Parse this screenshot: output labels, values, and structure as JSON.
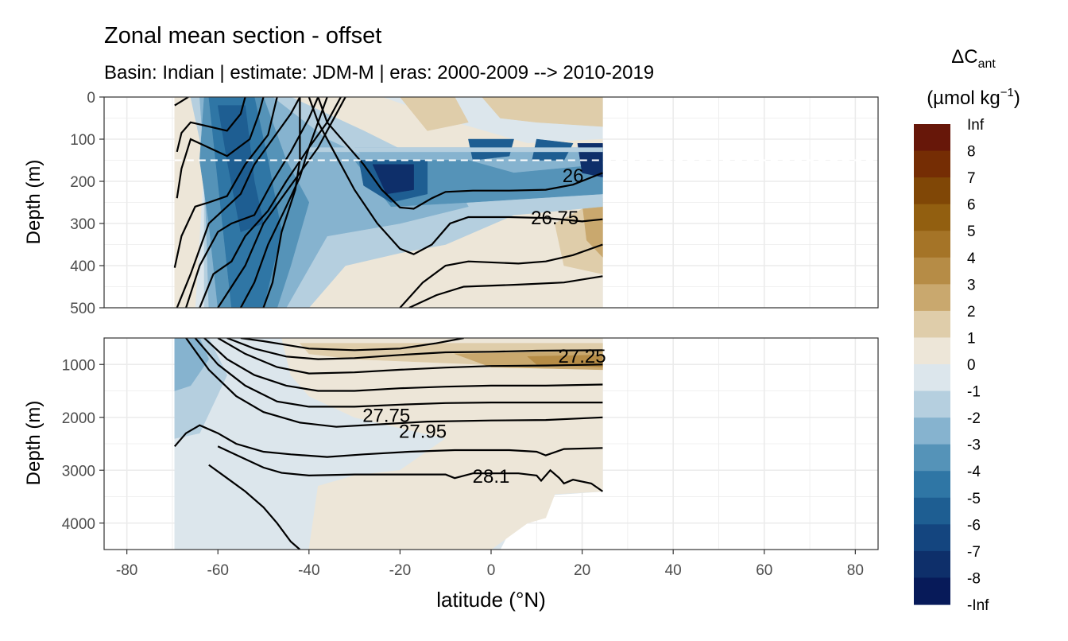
{
  "title": "Zonal mean section - offset",
  "subtitle": "Basin: Indian | estimate: JDM-M | eras: 2000-2009 --> 2010-2019",
  "chart_data": {
    "type": "heatmap",
    "title": "Zonal mean section - offset",
    "subtitle": "Basin: Indian | estimate: JDM-M | eras: 2000-2009 --> 2010-2019",
    "xlabel": "latitude (°N)",
    "ylabel": "Depth (m)",
    "xlim": [
      -85,
      85
    ],
    "x_ticks": [
      "-80",
      "-60",
      "-40",
      "-20",
      "0",
      "20",
      "40",
      "60",
      "80"
    ],
    "data_extent_lat": [
      -69.5,
      24.5
    ],
    "reference_depth_line_m": 150,
    "panels": [
      {
        "name": "upper",
        "ylim": [
          0,
          500
        ],
        "y_ticks": [
          "0",
          "100",
          "200",
          "300",
          "400",
          "500"
        ],
        "isopycnal_labels": [
          {
            "text": "26",
            "lat": 18,
            "depth": 185
          },
          {
            "text": "26.75",
            "lat": 14,
            "depth": 285
          }
        ]
      },
      {
        "name": "lower",
        "ylim": [
          500,
          4500
        ],
        "y_ticks": [
          "1000",
          "2000",
          "3000",
          "4000"
        ],
        "isopycnal_labels": [
          {
            "text": "27.25",
            "lat": 20,
            "depth": 830
          },
          {
            "text": "27.75",
            "lat": -23,
            "depth": 1950
          },
          {
            "text": "27.95",
            "lat": -15,
            "depth": 2250
          },
          {
            "text": "28.1",
            "lat": 0,
            "depth": 3100
          }
        ]
      }
    ],
    "legend": {
      "title_main": "ΔC",
      "title_sub": "ant",
      "unit_main": "(µmol kg",
      "unit_sup": "−1",
      "unit_end": ")",
      "placement": "right",
      "labels": [
        "Inf",
        "8",
        "7",
        "6",
        "5",
        "4",
        "3",
        "2",
        "1",
        "0",
        "-1",
        "-2",
        "-3",
        "-4",
        "-5",
        "-6",
        "-7",
        "-8",
        "-Inf"
      ],
      "colors": [
        "#671709",
        "#752d04",
        "#804706",
        "#925f10",
        "#a57427",
        "#b68c46",
        "#c9a86e",
        "#dfcdaa",
        "#ede6d8",
        "#dce6ec",
        "#b5cfdf",
        "#86b3cf",
        "#5593b8",
        "#2f76a5",
        "#1e5e92",
        "#14457f",
        "#0e2f6a",
        "#071a59"
      ]
    }
  }
}
